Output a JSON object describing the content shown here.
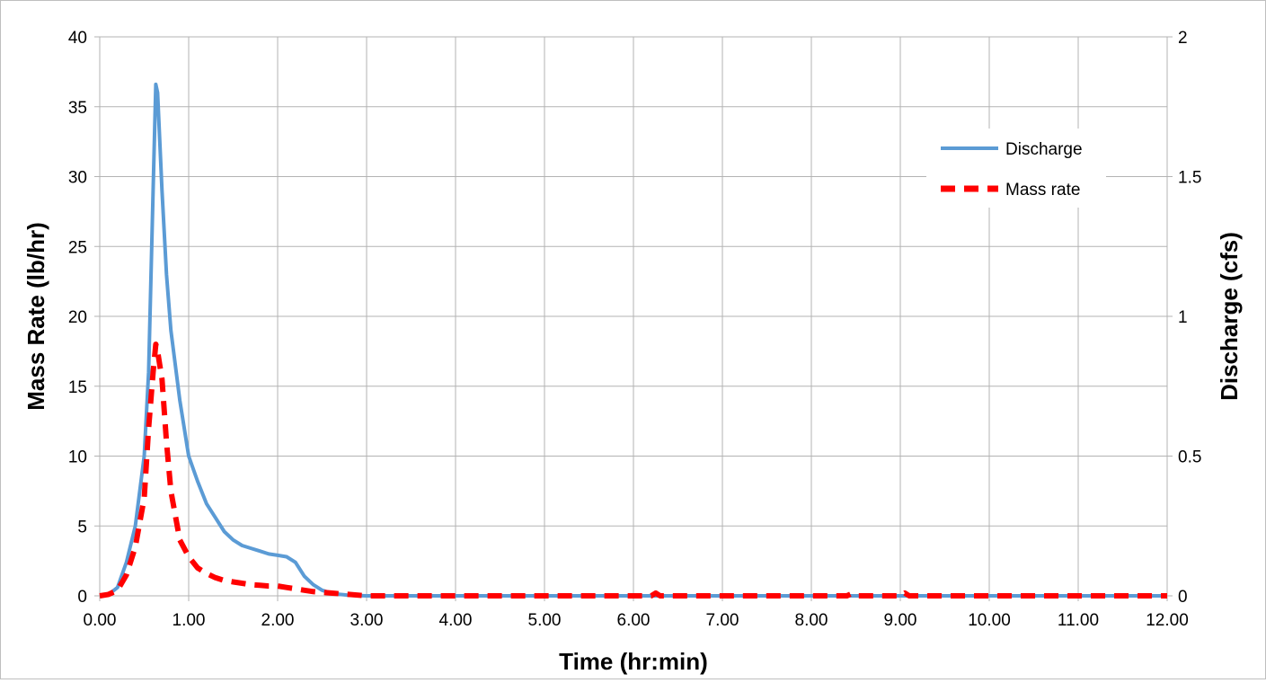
{
  "chart_data": {
    "type": "line",
    "title": "",
    "xlabel": "Time (hr:min)",
    "ylabel_left": "Mass Rate (lb/hr)",
    "ylabel_right": "Discharge (cfs)",
    "xlim": [
      0,
      12
    ],
    "ylim_left": [
      0,
      40
    ],
    "ylim_right": [
      0,
      2
    ],
    "x_ticks": [
      "0.00",
      "1.00",
      "2.00",
      "3.00",
      "4.00",
      "5.00",
      "6.00",
      "7.00",
      "8.00",
      "9.00",
      "10.00",
      "11.00",
      "12.00"
    ],
    "y_left_ticks": [
      "0",
      "5",
      "10",
      "15",
      "20",
      "25",
      "30",
      "35",
      "40"
    ],
    "y_right_ticks": [
      "0",
      "0.5",
      "1",
      "1.5",
      "2"
    ],
    "grid": true,
    "legend_position": "top-right",
    "colors": {
      "discharge": "#5b9bd5",
      "mass_rate": "#ff0000",
      "grid": "#b3b3b3",
      "frame": "#bfbfbf"
    },
    "series": [
      {
        "name": "Discharge",
        "axis": "right",
        "style": "solid",
        "x": [
          0,
          0.1,
          0.2,
          0.3,
          0.4,
          0.5,
          0.55,
          0.6,
          0.63,
          0.65,
          0.7,
          0.75,
          0.8,
          0.9,
          1.0,
          1.1,
          1.2,
          1.3,
          1.4,
          1.5,
          1.6,
          1.7,
          1.8,
          1.9,
          2.0,
          2.1,
          2.2,
          2.3,
          2.4,
          2.5,
          2.6,
          2.7,
          2.8,
          3.0,
          12.0
        ],
        "y": [
          0,
          0.005,
          0.03,
          0.12,
          0.25,
          0.5,
          0.8,
          1.45,
          1.83,
          1.8,
          1.45,
          1.15,
          0.95,
          0.7,
          0.5,
          0.41,
          0.33,
          0.28,
          0.23,
          0.2,
          0.18,
          0.17,
          0.16,
          0.15,
          0.145,
          0.14,
          0.12,
          0.07,
          0.04,
          0.02,
          0.01,
          0.005,
          0.002,
          0.0,
          0.0
        ]
      },
      {
        "name": "Mass rate",
        "axis": "left",
        "style": "dashed",
        "x": [
          0,
          0.1,
          0.2,
          0.3,
          0.4,
          0.5,
          0.55,
          0.6,
          0.63,
          0.65,
          0.7,
          0.75,
          0.8,
          0.9,
          1.0,
          1.1,
          1.2,
          1.3,
          1.4,
          1.5,
          1.6,
          1.7,
          1.8,
          1.9,
          2.0,
          2.1,
          2.2,
          2.3,
          2.4,
          2.5,
          2.6,
          2.7,
          2.8,
          3.0,
          6.2,
          6.25,
          6.3,
          8.4,
          8.45,
          8.5,
          9.0,
          9.05,
          9.1,
          12.0
        ],
        "y": [
          0,
          0.1,
          0.4,
          1.5,
          3.5,
          7.0,
          12.0,
          16.0,
          18.0,
          17.5,
          15.5,
          11.0,
          7.5,
          4.0,
          2.8,
          2.0,
          1.6,
          1.3,
          1.1,
          1.0,
          0.9,
          0.8,
          0.75,
          0.7,
          0.7,
          0.6,
          0.5,
          0.4,
          0.3,
          0.25,
          0.2,
          0.15,
          0.1,
          0.0,
          0.0,
          0.2,
          0.0,
          0.0,
          0.15,
          0.0,
          0.0,
          0.2,
          0.0,
          0.0
        ]
      }
    ]
  }
}
